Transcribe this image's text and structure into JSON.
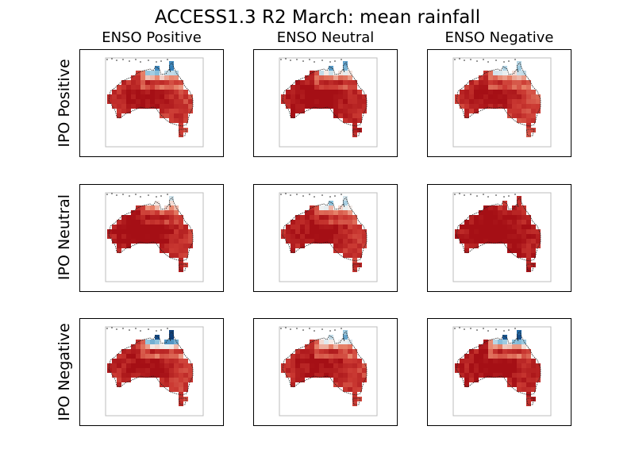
{
  "figure": {
    "title": "ACCESS1.3 R2 March: mean rainfall",
    "columns": [
      "ENSO Positive",
      "ENSO Neutral",
      "ENSO Negative"
    ],
    "rows": [
      "IPO Positive",
      "IPO Neutral",
      "IPO Negative"
    ]
  },
  "colors": {
    "dry_strong": "#a50f15",
    "dry_mid": "#cb3a33",
    "dry_light": "#e7836a",
    "near_zero": "#f7f4f2",
    "wet_light": "#92c5de",
    "wet_mid": "#2c7bb6",
    "wet_strong": "#08306b"
  },
  "panels": [
    {
      "row": "IPO Positive",
      "column": "ENSO Positive",
      "north_wet": 0.85,
      "interior_dry": 0.7,
      "east_gradient": 0.5
    },
    {
      "row": "IPO Positive",
      "column": "ENSO Neutral",
      "north_wet": 0.75,
      "interior_dry": 0.85,
      "east_gradient": 0.4
    },
    {
      "row": "IPO Positive",
      "column": "ENSO Negative",
      "north_wet": 0.7,
      "interior_dry": 0.65,
      "east_gradient": 0.6
    },
    {
      "row": "IPO Neutral",
      "column": "ENSO Positive",
      "north_wet": 0.55,
      "interior_dry": 0.9,
      "east_gradient": 0.7
    },
    {
      "row": "IPO Neutral",
      "column": "ENSO Neutral",
      "north_wet": 0.65,
      "interior_dry": 0.75,
      "east_gradient": 0.5
    },
    {
      "row": "IPO Neutral",
      "column": "ENSO Negative",
      "north_wet": 0.1,
      "interior_dry": 0.95,
      "east_gradient": 0.2
    },
    {
      "row": "IPO Negative",
      "column": "ENSO Positive",
      "north_wet": 0.95,
      "interior_dry": 0.7,
      "east_gradient": 0.5
    },
    {
      "row": "IPO Negative",
      "column": "ENSO Neutral",
      "north_wet": 0.7,
      "interior_dry": 0.7,
      "east_gradient": 0.5
    },
    {
      "row": "IPO Negative",
      "column": "ENSO Negative",
      "north_wet": 0.9,
      "interior_dry": 0.85,
      "east_gradient": 0.4
    }
  ]
}
